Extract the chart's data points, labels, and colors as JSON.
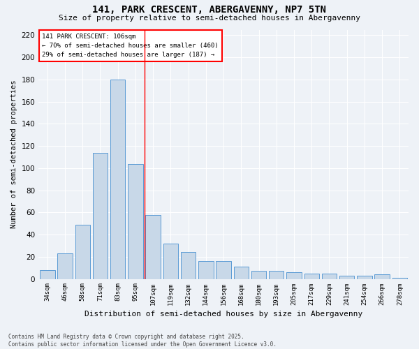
{
  "title": "141, PARK CRESCENT, ABERGAVENNY, NP7 5TN",
  "subtitle": "Size of property relative to semi-detached houses in Abergavenny",
  "xlabel": "Distribution of semi-detached houses by size in Abergavenny",
  "ylabel": "Number of semi-detached properties",
  "categories": [
    "34sqm",
    "46sqm",
    "58sqm",
    "71sqm",
    "83sqm",
    "95sqm",
    "107sqm",
    "119sqm",
    "132sqm",
    "144sqm",
    "156sqm",
    "168sqm",
    "180sqm",
    "193sqm",
    "205sqm",
    "217sqm",
    "229sqm",
    "241sqm",
    "254sqm",
    "266sqm",
    "278sqm"
  ],
  "values": [
    8,
    23,
    49,
    114,
    180,
    104,
    58,
    32,
    24,
    16,
    16,
    11,
    7,
    7,
    6,
    5,
    5,
    3,
    3,
    4,
    1
  ],
  "bar_color": "#c8d8e8",
  "bar_edge_color": "#5b9bd5",
  "property_label": "141 PARK CRESCENT: 106sqm",
  "pct_smaller": 70,
  "pct_larger": 29,
  "count_smaller": 460,
  "count_larger": 187,
  "ylim": [
    0,
    225
  ],
  "yticks": [
    0,
    20,
    40,
    60,
    80,
    100,
    120,
    140,
    160,
    180,
    200,
    220
  ],
  "background_color": "#eef2f7",
  "grid_color": "#ffffff",
  "footer_line1": "Contains HM Land Registry data © Crown copyright and database right 2025.",
  "footer_line2": "Contains public sector information licensed under the Open Government Licence v3.0."
}
